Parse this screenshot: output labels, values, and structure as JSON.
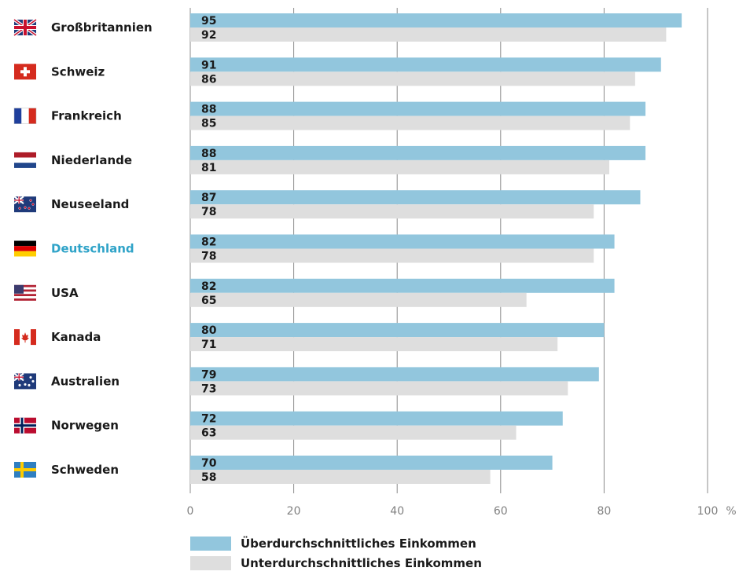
{
  "chart_data": {
    "type": "bar",
    "orientation": "horizontal",
    "categories": [
      "Großbritannien",
      "Schweiz",
      "Frankreich",
      "Niederlande",
      "Neuseeland",
      "Deutschland",
      "USA",
      "Kanada",
      "Australien",
      "Norwegen",
      "Schweden"
    ],
    "highlight_category": "Deutschland",
    "series": [
      {
        "name": "Überdurchschnittliches Einkommen",
        "values": [
          95,
          91,
          88,
          88,
          87,
          82,
          82,
          80,
          79,
          72,
          70
        ]
      },
      {
        "name": "Unterdurchschnittliches Einkommen",
        "values": [
          92,
          86,
          85,
          81,
          78,
          78,
          65,
          71,
          73,
          63,
          58
        ]
      }
    ],
    "xlim": [
      0,
      100
    ],
    "xticks": [
      0,
      20,
      40,
      60,
      80,
      100
    ],
    "xunit": "%",
    "grid": true,
    "legend_position": "bottom"
  },
  "colors": {
    "series1": "#92c6dd",
    "series2": "#dedede",
    "grid": "#8c8c8c",
    "label": "#1a1a1a",
    "highlight": "#2fa3c8",
    "tick": "#808080"
  },
  "flags": [
    "uk-flag-icon",
    "switzerland-flag-icon",
    "france-flag-icon",
    "netherlands-flag-icon",
    "newzealand-flag-icon",
    "germany-flag-icon",
    "usa-flag-icon",
    "canada-flag-icon",
    "australia-flag-icon",
    "norway-flag-icon",
    "sweden-flag-icon"
  ]
}
